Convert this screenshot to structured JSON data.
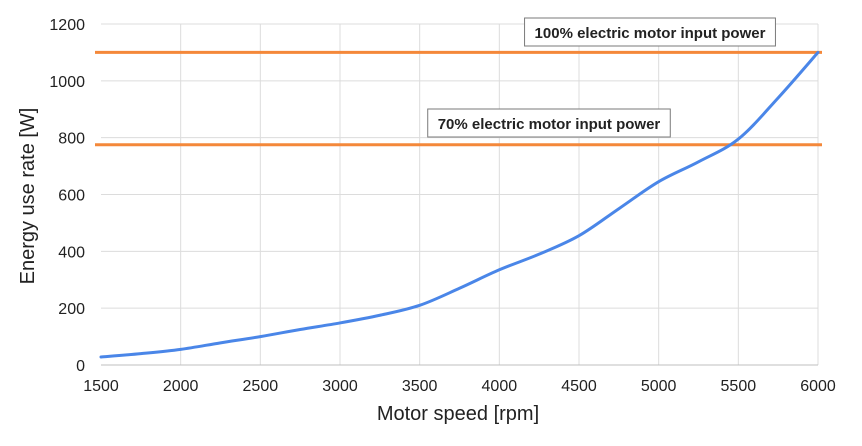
{
  "chart_data": {
    "type": "line",
    "title": "",
    "xlabel": "Motor speed [rpm]",
    "ylabel": "Energy use rate [W]",
    "xlim": [
      1500,
      6000
    ],
    "ylim": [
      0,
      1200
    ],
    "xticks": [
      1500,
      2000,
      2500,
      3000,
      3500,
      4000,
      4500,
      5000,
      5500,
      6000
    ],
    "yticks": [
      0,
      200,
      400,
      600,
      800,
      1000,
      1200
    ],
    "grid": true,
    "legend": "none",
    "series": [
      {
        "color": "#4a86e8",
        "x": [
          1500,
          1750,
          2000,
          2250,
          2500,
          2750,
          3000,
          3250,
          3500,
          3750,
          4000,
          4250,
          4500,
          4750,
          5000,
          5250,
          5500,
          5750,
          6000
        ],
        "y": [
          28,
          40,
          55,
          78,
          100,
          125,
          148,
          175,
          210,
          270,
          335,
          390,
          455,
          550,
          645,
          715,
          795,
          940,
          1100
        ]
      }
    ],
    "reference_lines": [
      {
        "label": "100% electric motor input power",
        "y": 1100,
        "color": "#f4883a"
      },
      {
        "label": "70% electric motor input power",
        "y": 775,
        "color": "#f4883a"
      }
    ]
  }
}
